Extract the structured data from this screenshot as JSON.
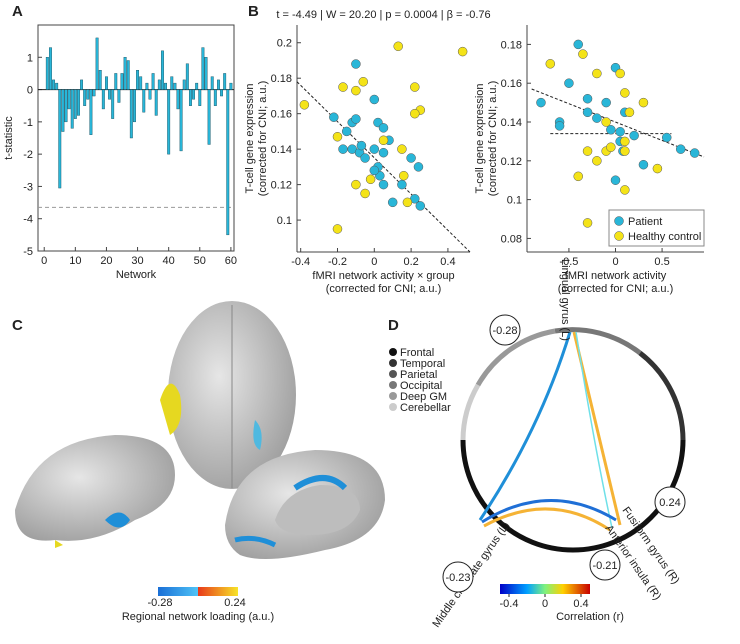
{
  "panel_labels": [
    "A",
    "B",
    "C",
    "D"
  ],
  "chart_data": [
    {
      "type": "bar",
      "x_label": "Network",
      "y_label": "t-statistic",
      "color": "#29b6d8",
      "x": [
        1,
        2,
        3,
        4,
        5,
        6,
        7,
        8,
        9,
        10,
        11,
        12,
        13,
        14,
        15,
        16,
        17,
        18,
        19,
        20,
        21,
        22,
        23,
        24,
        25,
        26,
        27,
        28,
        29,
        30,
        31,
        32,
        33,
        34,
        35,
        36,
        37,
        38,
        39,
        40,
        41,
        42,
        43,
        44,
        45,
        46,
        47,
        48,
        49,
        50,
        51,
        52,
        53,
        54,
        55,
        56,
        57,
        58,
        59,
        60
      ],
      "values": [
        1.0,
        1.3,
        0.3,
        0.2,
        -3.05,
        -1.3,
        -1.0,
        -0.6,
        -1.2,
        -0.9,
        -0.8,
        0.3,
        -0.5,
        -0.3,
        -1.4,
        -0.2,
        1.6,
        0.6,
        -0.6,
        0.4,
        -0.3,
        -0.9,
        0.5,
        -0.4,
        0.5,
        1.0,
        0.9,
        -1.5,
        -1.0,
        0.6,
        0.4,
        -0.7,
        0.2,
        -0.3,
        0.5,
        -0.8,
        0.3,
        1.2,
        0.2,
        -2.0,
        0.4,
        0.2,
        -0.6,
        -1.9,
        0.3,
        0.8,
        -0.5,
        -0.3,
        0.2,
        -0.5,
        1.3,
        1.0,
        -1.7,
        0.4,
        -0.5,
        0.3,
        -0.2,
        0.5,
        -4.5,
        0.2
      ],
      "xlim": [
        -2,
        61
      ],
      "xticks": [
        0,
        10,
        20,
        30,
        40,
        50,
        60
      ],
      "ylim": [
        -5,
        2
      ],
      "yticks": [
        -5,
        -4,
        -3,
        -2,
        -1,
        0,
        1
      ],
      "reference_line": -3.65
    },
    {
      "type": "scatter",
      "title": "t = -4.49 | W = 20.20 | p = 0.0004 | β = -0.76",
      "x_label": [
        "fMRI network activity × group",
        "(corrected for CNI; a.u.)"
      ],
      "y_label": [
        "T-cell gene expression",
        "(corrected for CNI; a.u.)"
      ],
      "xlim": [
        -0.42,
        0.52
      ],
      "xticks": [
        -0.4,
        -0.2,
        0,
        0.2,
        0.4
      ],
      "ylim": [
        0.082,
        0.21
      ],
      "yticks": [
        0.1,
        0.12,
        0.14,
        0.16,
        0.18,
        0.2
      ],
      "series": [
        {
          "color": "#29b6d8",
          "x": [
            -0.1,
            -0.22,
            -0.17,
            -0.15,
            -0.12,
            -0.1,
            -0.12,
            -0.08,
            -0.07,
            -0.05,
            0.0,
            0.02,
            0.05,
            0.0,
            0.02,
            0.03,
            0.05,
            0.08,
            0.1,
            0.15,
            0.2,
            0.22,
            0.25,
            0.24,
            0.0,
            0.05
          ],
          "values": [
            0.188,
            0.158,
            0.14,
            0.15,
            0.155,
            0.157,
            0.14,
            0.138,
            0.142,
            0.135,
            0.168,
            0.155,
            0.152,
            0.14,
            0.13,
            0.125,
            0.12,
            0.145,
            0.11,
            0.12,
            0.135,
            0.112,
            0.108,
            0.13,
            0.128,
            0.138
          ]
        },
        {
          "color": "#f4e318",
          "x": [
            -0.38,
            -0.2,
            -0.17,
            -0.1,
            -0.06,
            0.13,
            0.48,
            0.22,
            0.25,
            0.15,
            0.16,
            0.18,
            -0.05,
            -0.2,
            -0.02,
            0.05,
            -0.1,
            0.22
          ],
          "values": [
            0.165,
            0.147,
            0.175,
            0.173,
            0.178,
            0.198,
            0.195,
            0.175,
            0.162,
            0.14,
            0.125,
            0.11,
            0.115,
            0.095,
            0.123,
            0.145,
            0.12,
            0.16
          ]
        }
      ],
      "fit_lines": [
        {
          "x": [
            -0.42,
            0.52
          ],
          "values": [
            0.178,
            0.082
          ]
        }
      ]
    },
    {
      "type": "scatter",
      "x_label": [
        "fMRI network activity",
        "(corrected for CNI; a.u.)"
      ],
      "y_label": [
        "T-cell gene expression",
        "(corrected for CNI; a.u.)"
      ],
      "xlim": [
        -0.95,
        0.95
      ],
      "xticks": [
        -0.5,
        0,
        0.5
      ],
      "ylim": [
        0.073,
        0.19
      ],
      "yticks": [
        0.08,
        0.1,
        0.12,
        0.14,
        0.16,
        0.18
      ],
      "legend": "lower right",
      "series": [
        {
          "name": "Patient",
          "color": "#29b6d8",
          "x": [
            -0.8,
            -0.6,
            -0.5,
            -0.4,
            -0.3,
            -0.3,
            -0.2,
            -0.1,
            -0.05,
            0,
            0.05,
            0.08,
            0.1,
            0.2,
            0.3,
            0.55,
            0.7,
            0.85,
            -0.6,
            0.0,
            0.05
          ],
          "values": [
            0.15,
            0.14,
            0.16,
            0.18,
            0.152,
            0.145,
            0.142,
            0.15,
            0.136,
            0.168,
            0.13,
            0.125,
            0.145,
            0.133,
            0.118,
            0.132,
            0.126,
            0.124,
            0.138,
            0.11,
            0.135
          ]
        },
        {
          "name": "Healthy control",
          "color": "#f4e318",
          "x": [
            -0.7,
            -0.35,
            -0.2,
            0.05,
            0.1,
            0.15,
            -0.1,
            -0.3,
            -0.1,
            -0.05,
            0.1,
            0.3,
            0.45,
            -0.3,
            -0.4,
            -0.2,
            0.1,
            0.0,
            0.1
          ],
          "values": [
            0.17,
            0.175,
            0.165,
            0.165,
            0.155,
            0.145,
            0.14,
            0.125,
            0.125,
            0.127,
            0.125,
            0.15,
            0.116,
            0.088,
            0.112,
            0.12,
            0.105,
            0.082,
            0.13
          ]
        }
      ],
      "fit_lines": [
        {
          "x": [
            -0.9,
            0.95
          ],
          "values": [
            0.157,
            0.122
          ]
        },
        {
          "x": [
            -0.7,
            0.6
          ],
          "values": [
            0.134,
            0.134
          ]
        }
      ]
    }
  ],
  "panel_c": {
    "colorbar_ticks": [
      -0.28,
      0.24
    ],
    "colorbar_label": "Regional network loading (a.u.)"
  },
  "panel_d": {
    "legend": [
      {
        "label": "Frontal",
        "color": "#111111"
      },
      {
        "label": "Temporal",
        "color": "#333333"
      },
      {
        "label": "Parietal",
        "color": "#555555"
      },
      {
        "label": "Occipital",
        "color": "#777777"
      },
      {
        "label": "Deep GM",
        "color": "#999999"
      },
      {
        "label": "Cerebellar",
        "color": "#cccccc"
      }
    ],
    "regions": [
      {
        "label": "Lingual gyrus (L)",
        "value": -0.28
      },
      {
        "label": "Fusiform gyrus (R)",
        "value": 0.24
      },
      {
        "label": "Anterior insula (R)",
        "value": -0.21
      },
      {
        "label": "Middle cingulate gyrus (L)",
        "value": -0.23
      }
    ],
    "colorbar": {
      "lim": [
        -0.5,
        0.5
      ],
      "ticks": [
        -0.4,
        0,
        0.4
      ],
      "label": "Correlation (r)"
    }
  }
}
